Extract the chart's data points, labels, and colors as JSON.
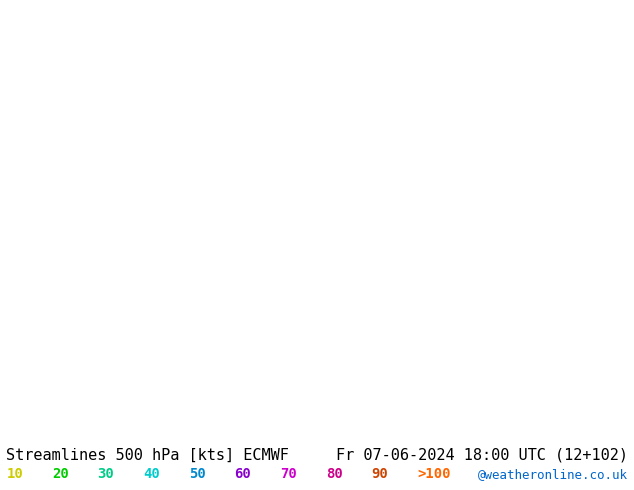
{
  "title_left": "Streamlines 500 hPa [kts] ECMWF",
  "title_right": "Fr 07-06-2024 18:00 UTC (12+102)",
  "credit": "@weatheronline.co.uk",
  "legend_values": [
    "10",
    "20",
    "30",
    "40",
    "50",
    "60",
    "70",
    "80",
    "90",
    ">100"
  ],
  "legend_colors": [
    "#cccc00",
    "#00cc00",
    "#00cc88",
    "#00cccc",
    "#0088cc",
    "#8800cc",
    "#cc00cc",
    "#cc0088",
    "#cc4400",
    "#ff6600"
  ],
  "speed_colormap": [
    [
      0,
      "#aaaaaa"
    ],
    [
      10,
      "#cccc00"
    ],
    [
      20,
      "#00cc00"
    ],
    [
      30,
      "#00cc88"
    ],
    [
      40,
      "#00cccc"
    ],
    [
      50,
      "#0088cc"
    ],
    [
      60,
      "#8800cc"
    ],
    [
      70,
      "#cc00cc"
    ],
    [
      80,
      "#cc0088"
    ],
    [
      90,
      "#cc4400"
    ],
    [
      100,
      "#ff6600"
    ]
  ],
  "bg_color": "#e8e8e8",
  "land_color": "#d0eec0",
  "ocean_color": "#e8e8e8",
  "title_fontsize": 11,
  "legend_fontsize": 10,
  "credit_fontsize": 9,
  "fig_width": 6.34,
  "fig_height": 4.9,
  "dpi": 100
}
